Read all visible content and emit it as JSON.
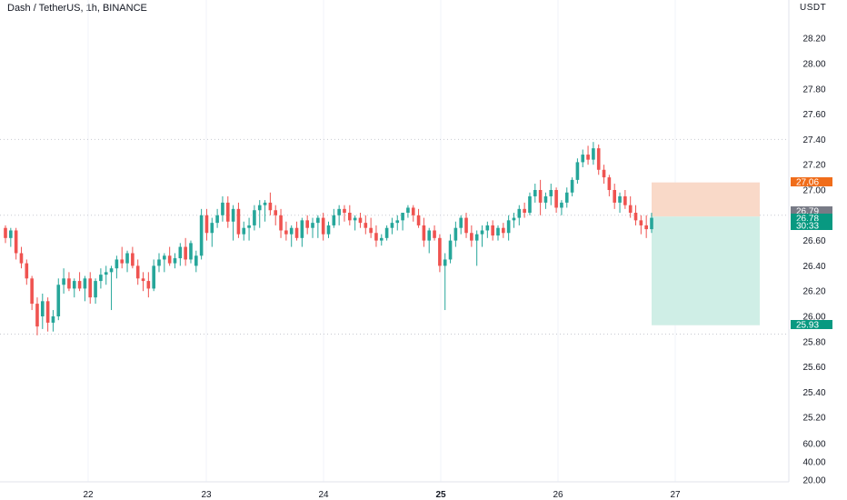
{
  "header": {
    "title": "Dash / TetherUS, 1h, BINANCE",
    "currency": "USDT"
  },
  "colors": {
    "up": "#26a69a",
    "down": "#ef5350",
    "stop_zone": "#f9d9c8",
    "target_zone": "#cfeee6",
    "stop_tag": "#f06d1a",
    "entry_tag": "#787b86",
    "price_tag": "#089981",
    "target_tag": "#089981"
  },
  "chart_data": {
    "type": "candlestick",
    "title": "Dash / TetherUS, 1h, BINANCE",
    "y_ticks": [
      "28.20",
      "28.00",
      "27.80",
      "27.60",
      "27.40",
      "27.20",
      "27.00",
      "26.80",
      "26.60",
      "26.40",
      "26.20",
      "26.00",
      "25.80",
      "25.60",
      "25.40",
      "25.20"
    ],
    "y_ticks_lower": [
      "60.00",
      "40.00",
      "20.00"
    ],
    "x_ticks": [
      "22",
      "23",
      "24",
      "25",
      "26",
      "27"
    ],
    "ylim": [
      25.1,
      28.3
    ],
    "grid": true,
    "position": {
      "stop_loss": 27.06,
      "entry": 26.79,
      "take_profit": 25.93
    },
    "price_labels": [
      {
        "name": "stop",
        "text": "27.06",
        "value": 27.06
      },
      {
        "name": "entry",
        "text": "26.79",
        "value": 26.79
      },
      {
        "name": "price",
        "text": "26.78",
        "value": 26.78
      },
      {
        "name": "countdown",
        "text": "30:33",
        "value": 26.71
      },
      {
        "name": "target",
        "text": "25.93",
        "value": 25.93
      }
    ],
    "candles": [
      [
        26.7,
        26.72,
        26.58,
        26.62
      ],
      [
        26.62,
        26.7,
        26.55,
        26.68
      ],
      [
        26.68,
        26.7,
        26.45,
        26.5
      ],
      [
        26.5,
        26.55,
        26.38,
        26.42
      ],
      [
        26.42,
        26.45,
        26.25,
        26.3
      ],
      [
        26.3,
        26.32,
        26.05,
        26.1
      ],
      [
        26.1,
        26.15,
        25.85,
        25.92
      ],
      [
        26.0,
        26.18,
        25.9,
        26.12
      ],
      [
        26.12,
        26.15,
        25.88,
        25.95
      ],
      [
        25.95,
        26.05,
        25.88,
        26.0
      ],
      [
        26.0,
        26.3,
        25.97,
        26.25
      ],
      [
        26.25,
        26.38,
        26.18,
        26.3
      ],
      [
        26.3,
        26.35,
        26.2,
        26.22
      ],
      [
        26.22,
        26.3,
        26.15,
        26.28
      ],
      [
        26.28,
        26.35,
        26.2,
        26.22
      ],
      [
        26.22,
        26.32,
        26.12,
        26.3
      ],
      [
        26.3,
        26.35,
        26.1,
        26.15
      ],
      [
        26.15,
        26.3,
        26.1,
        26.28
      ],
      [
        26.28,
        26.38,
        26.22,
        26.33
      ],
      [
        26.33,
        26.4,
        26.25,
        26.35
      ],
      [
        26.35,
        26.4,
        26.05,
        26.38
      ],
      [
        26.38,
        26.48,
        26.3,
        26.45
      ],
      [
        26.45,
        26.55,
        26.38,
        26.42
      ],
      [
        26.42,
        26.52,
        26.35,
        26.5
      ],
      [
        26.5,
        26.55,
        26.38,
        26.4
      ],
      [
        26.4,
        26.45,
        26.25,
        26.3
      ],
      [
        26.3,
        26.35,
        26.2,
        26.28
      ],
      [
        26.28,
        26.35,
        26.15,
        26.22
      ],
      [
        26.22,
        26.45,
        26.2,
        26.4
      ],
      [
        26.4,
        26.5,
        26.35,
        26.45
      ],
      [
        26.45,
        26.5,
        26.35,
        26.48
      ],
      [
        26.48,
        26.55,
        26.4,
        26.42
      ],
      [
        26.42,
        26.5,
        26.38,
        26.46
      ],
      [
        26.46,
        26.58,
        26.4,
        26.55
      ],
      [
        26.55,
        26.62,
        26.4,
        26.45
      ],
      [
        26.45,
        26.6,
        26.42,
        26.58
      ],
      [
        26.4,
        26.52,
        26.35,
        26.48
      ],
      [
        26.48,
        26.85,
        26.45,
        26.8
      ],
      [
        26.8,
        26.85,
        26.6,
        26.66
      ],
      [
        26.66,
        26.78,
        26.55,
        26.74
      ],
      [
        26.74,
        26.85,
        26.7,
        26.8
      ],
      [
        26.8,
        26.95,
        26.75,
        26.9
      ],
      [
        26.9,
        26.95,
        26.7,
        26.75
      ],
      [
        26.75,
        26.88,
        26.6,
        26.85
      ],
      [
        26.85,
        26.9,
        26.62,
        26.65
      ],
      [
        26.65,
        26.75,
        26.6,
        26.7
      ],
      [
        26.7,
        26.78,
        26.6,
        26.72
      ],
      [
        26.72,
        26.88,
        26.68,
        26.84
      ],
      [
        26.84,
        26.92,
        26.7,
        26.88
      ],
      [
        26.88,
        26.92,
        26.75,
        26.9
      ],
      [
        26.9,
        26.98,
        26.8,
        26.84
      ],
      [
        26.84,
        26.88,
        26.72,
        26.8
      ],
      [
        26.8,
        26.85,
        26.62,
        26.68
      ],
      [
        26.68,
        26.75,
        26.6,
        26.65
      ],
      [
        26.65,
        26.72,
        26.55,
        26.7
      ],
      [
        26.7,
        26.75,
        26.6,
        26.62
      ],
      [
        26.62,
        26.78,
        26.55,
        26.76
      ],
      [
        26.76,
        26.8,
        26.65,
        26.7
      ],
      [
        26.7,
        26.78,
        26.62,
        26.74
      ],
      [
        26.74,
        26.8,
        26.62,
        26.78
      ],
      [
        26.78,
        26.82,
        26.6,
        26.65
      ],
      [
        26.65,
        26.75,
        26.62,
        26.72
      ],
      [
        26.72,
        26.85,
        26.7,
        26.8
      ],
      [
        26.8,
        26.88,
        26.72,
        26.85
      ],
      [
        26.85,
        26.88,
        26.75,
        26.82
      ],
      [
        26.82,
        26.88,
        26.72,
        26.76
      ],
      [
        26.76,
        26.8,
        26.68,
        26.78
      ],
      [
        26.78,
        26.82,
        26.7,
        26.74
      ],
      [
        26.74,
        26.8,
        26.65,
        26.7
      ],
      [
        26.7,
        26.78,
        26.62,
        26.66
      ],
      [
        26.66,
        26.72,
        26.55,
        26.6
      ],
      [
        26.6,
        26.65,
        26.56,
        26.62
      ],
      [
        26.62,
        26.72,
        26.6,
        26.7
      ],
      [
        26.7,
        26.78,
        26.65,
        26.74
      ],
      [
        26.74,
        26.8,
        26.68,
        26.76
      ],
      [
        26.76,
        26.8,
        26.68,
        26.82
      ],
      [
        26.82,
        26.88,
        26.78,
        26.86
      ],
      [
        26.86,
        26.88,
        26.75,
        26.8
      ],
      [
        26.8,
        26.85,
        26.7,
        26.72
      ],
      [
        26.72,
        26.78,
        26.55,
        26.6
      ],
      [
        26.6,
        26.7,
        26.5,
        26.68
      ],
      [
        26.68,
        26.72,
        26.6,
        26.62
      ],
      [
        26.62,
        26.65,
        26.35,
        26.4
      ],
      [
        26.4,
        26.5,
        26.05,
        26.45
      ],
      [
        26.45,
        26.65,
        26.42,
        26.6
      ],
      [
        26.6,
        26.75,
        26.55,
        26.7
      ],
      [
        26.7,
        26.8,
        26.65,
        26.78
      ],
      [
        26.78,
        26.82,
        26.62,
        26.66
      ],
      [
        26.66,
        26.72,
        26.55,
        26.6
      ],
      [
        26.6,
        26.68,
        26.4,
        26.65
      ],
      [
        26.65,
        26.72,
        26.55,
        26.68
      ],
      [
        26.68,
        26.75,
        26.62,
        26.72
      ],
      [
        26.72,
        26.76,
        26.6,
        26.64
      ],
      [
        26.64,
        26.72,
        26.6,
        26.7
      ],
      [
        26.7,
        26.74,
        26.62,
        26.66
      ],
      [
        26.66,
        26.8,
        26.6,
        26.76
      ],
      [
        26.76,
        26.82,
        26.7,
        26.78
      ],
      [
        26.78,
        26.88,
        26.72,
        26.85
      ],
      [
        26.85,
        26.9,
        26.78,
        26.82
      ],
      [
        26.82,
        26.98,
        26.8,
        26.95
      ],
      [
        26.95,
        27.05,
        26.9,
        27.0
      ],
      [
        27.0,
        27.08,
        26.8,
        26.9
      ],
      [
        26.9,
        26.98,
        26.85,
        26.95
      ],
      [
        26.95,
        27.05,
        26.88,
        27.0
      ],
      [
        27.0,
        27.02,
        26.82,
        26.86
      ],
      [
        26.86,
        26.92,
        26.8,
        26.9
      ],
      [
        26.9,
        27.02,
        26.86,
        26.98
      ],
      [
        26.98,
        27.1,
        26.95,
        27.08
      ],
      [
        27.08,
        27.25,
        27.05,
        27.22
      ],
      [
        27.22,
        27.32,
        27.18,
        27.28
      ],
      [
        27.28,
        27.35,
        27.2,
        27.24
      ],
      [
        27.24,
        27.38,
        27.2,
        27.33
      ],
      [
        27.33,
        27.36,
        27.12,
        27.16
      ],
      [
        27.16,
        27.2,
        27.05,
        27.1
      ],
      [
        27.1,
        27.12,
        26.95,
        27.0
      ],
      [
        27.0,
        27.05,
        26.85,
        26.9
      ],
      [
        26.9,
        26.98,
        26.82,
        26.95
      ],
      [
        26.95,
        27.0,
        26.85,
        26.88
      ],
      [
        26.88,
        26.95,
        26.78,
        26.82
      ],
      [
        26.82,
        26.88,
        26.72,
        26.76
      ],
      [
        26.76,
        26.8,
        26.65,
        26.72
      ],
      [
        26.72,
        26.8,
        26.62,
        26.69
      ],
      [
        26.69,
        26.82,
        26.66,
        26.78
      ]
    ]
  }
}
